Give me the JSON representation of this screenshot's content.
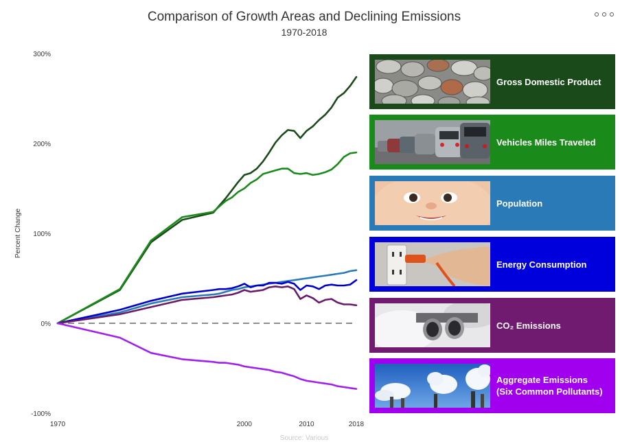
{
  "title": "Comparison of Growth Areas and Declining Emissions",
  "subtitle": "1970-2018",
  "source": "Source: Various",
  "menu_icon": "ellipsis-icon",
  "chart_data": {
    "type": "line",
    "ylabel": "Percent Change",
    "ylim": [
      -100,
      300
    ],
    "xlim": [
      1970,
      2018
    ],
    "y_ticks": [
      "300%",
      "200%",
      "100%",
      "0%",
      "-100%"
    ],
    "y_tick_values": [
      300,
      200,
      100,
      0,
      -100
    ],
    "x_ticks": [
      "1970",
      "2000",
      "2010",
      "2018"
    ],
    "x_tick_values": [
      1970,
      2000,
      2010,
      2018
    ],
    "x": [
      1970,
      1980,
      1985,
      1990,
      1995,
      1996,
      1997,
      1998,
      1999,
      2000,
      2001,
      2002,
      2003,
      2004,
      2005,
      2006,
      2007,
      2008,
      2009,
      2010,
      2011,
      2012,
      2013,
      2014,
      2015,
      2016,
      2017,
      2018
    ],
    "zero_line": "dashed",
    "series": [
      {
        "name": "Gross Domestic Product",
        "color": "#1a4a1a",
        "values": [
          0,
          37,
          90,
          115,
          123,
          131,
          139,
          148,
          157,
          165,
          167,
          172,
          180,
          190,
          201,
          209,
          215,
          214,
          206,
          214,
          219,
          226,
          232,
          240,
          251,
          256,
          264,
          274
        ]
      },
      {
        "name": "Vehicles Miles Traveled",
        "color": "#1a8a1a",
        "values": [
          0,
          38,
          92,
          118,
          124,
          130,
          136,
          140,
          146,
          150,
          156,
          160,
          166,
          168,
          170,
          172,
          172,
          167,
          166,
          167,
          165,
          166,
          168,
          171,
          177,
          185,
          189,
          190
        ]
      },
      {
        "name": "Population",
        "color": "#2a7ab8",
        "values": [
          0,
          12,
          22,
          29,
          32,
          33,
          35,
          37,
          38,
          40,
          41,
          42,
          43,
          44,
          45,
          46,
          47,
          48,
          49,
          50,
          51,
          52,
          53,
          54,
          55,
          56,
          58,
          59
        ]
      },
      {
        "name": "Energy Consumption",
        "color": "#0000cc",
        "values": [
          0,
          15,
          25,
          33,
          37,
          38,
          38,
          39,
          41,
          44,
          40,
          42,
          42,
          45,
          45,
          44,
          46,
          44,
          37,
          42,
          41,
          38,
          42,
          43,
          42,
          42,
          43,
          48
        ]
      },
      {
        "name": "CO₂ Emissions",
        "color": "#6a1a6a",
        "values": [
          0,
          10,
          18,
          26,
          29,
          30,
          31,
          32,
          34,
          37,
          35,
          36,
          37,
          40,
          41,
          40,
          41,
          38,
          27,
          31,
          28,
          23,
          26,
          27,
          23,
          21,
          21,
          20
        ]
      },
      {
        "name": "Aggregate Emissions (Six Common Pollutants)",
        "color": "#a020f0",
        "values": [
          0,
          -16,
          -33,
          -40,
          -43,
          -44,
          -44,
          -45,
          -46,
          -48,
          -49,
          -50,
          -51,
          -52,
          -54,
          -55,
          -57,
          -59,
          -62,
          -64,
          -65,
          -66,
          -67,
          -68,
          -70,
          -71,
          -72,
          -73
        ]
      }
    ]
  },
  "cards": [
    {
      "label": "Gross Domestic Product",
      "bg": "#1a4a1a",
      "image": "coins-image"
    },
    {
      "label": "Vehicles Miles Traveled",
      "bg": "#1a8a1a",
      "image": "traffic-image"
    },
    {
      "label": "Population",
      "bg": "#2a7ab8",
      "image": "baby-image"
    },
    {
      "label": "Energy Consumption",
      "bg": "#0000dd",
      "image": "power-plug-image"
    },
    {
      "label": "CO₂ Emissions",
      "bg": "#701a70",
      "image": "exhaust-pipe-image"
    },
    {
      "label": "Aggregate Emissions",
      "label2": "(Six Common Pollutants)",
      "bg": "#a000ee",
      "image": "smokestacks-image"
    }
  ]
}
